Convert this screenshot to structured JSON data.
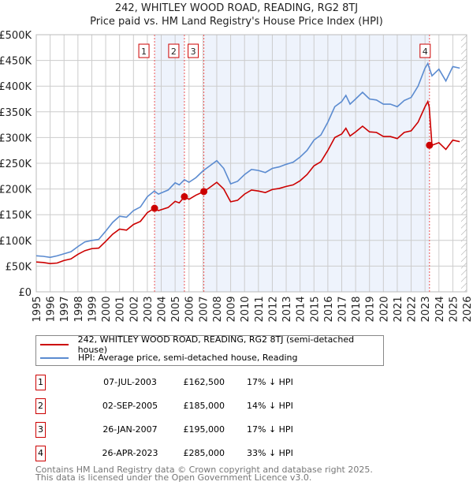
{
  "chart_data": {
    "type": "line",
    "title": "242, WHITLEY WOOD ROAD, READING, RG2 8TJ",
    "subtitle": "Price paid vs. HM Land Registry's House Price Index (HPI)",
    "xlabel": "",
    "ylabel": "",
    "xlim": [
      1995,
      2026
    ],
    "ylim": [
      0,
      500000
    ],
    "yticks": [
      0,
      50000,
      100000,
      150000,
      200000,
      250000,
      300000,
      350000,
      400000,
      450000,
      500000
    ],
    "ytick_labels": [
      "£0",
      "£50K",
      "£100K",
      "£150K",
      "£200K",
      "£250K",
      "£300K",
      "£350K",
      "£400K",
      "£450K",
      "£500K"
    ],
    "xticks": [
      "1995",
      "1996",
      "1997",
      "1998",
      "1999",
      "2000",
      "2001",
      "2002",
      "2003",
      "2004",
      "2005",
      "2006",
      "2007",
      "2008",
      "2009",
      "2010",
      "2011",
      "2012",
      "2013",
      "2014",
      "2015",
      "2016",
      "2017",
      "2018",
      "2019",
      "2020",
      "2021",
      "2022",
      "2023",
      "2024",
      "2025",
      "2026"
    ],
    "grid": true,
    "legend_placement": "below",
    "series": [
      {
        "name": "242, WHITLEY WOOD ROAD, READING, RG2 8TJ (semi-detached house)",
        "color": "#cc0000",
        "x": [
          1995,
          1995.5,
          1996,
          1996.5,
          1997,
          1997.5,
          1998,
          1998.5,
          1999,
          1999.5,
          2000,
          2000.5,
          2001,
          2001.5,
          2002,
          2002.5,
          2003,
          2003.5,
          2003.8,
          2004.5,
          2005,
          2005.3,
          2005.67,
          2006,
          2006.5,
          2007.07,
          2007.5,
          2008,
          2008.5,
          2009,
          2009.5,
          2010,
          2010.5,
          2011,
          2011.5,
          2012,
          2012.5,
          2013,
          2013.5,
          2014,
          2014.5,
          2015,
          2015.5,
          2016,
          2016.5,
          2017,
          2017.3,
          2017.6,
          2018,
          2018.5,
          2019,
          2019.5,
          2020,
          2020.5,
          2021,
          2021.5,
          2022,
          2022.5,
          2023,
          2023.2,
          2023.3,
          2023.5,
          2024,
          2024.5,
          2025,
          2025.5
        ],
        "y": [
          58000,
          57000,
          55000,
          56000,
          61000,
          64000,
          73000,
          80000,
          84000,
          85000,
          98000,
          112000,
          122000,
          120000,
          131000,
          137000,
          154000,
          162500,
          158000,
          164000,
          176000,
          173000,
          185000,
          180000,
          188000,
          195000,
          203000,
          213000,
          200000,
          175000,
          178000,
          190000,
          198000,
          196000,
          193000,
          199000,
          201000,
          205000,
          208000,
          216000,
          228000,
          245000,
          253000,
          275000,
          300000,
          307000,
          318000,
          303000,
          311000,
          322000,
          311000,
          310000,
          302000,
          302000,
          298000,
          310000,
          313000,
          330000,
          360000,
          370000,
          360000,
          285000,
          290000,
          277000,
          295000,
          292000
        ]
      },
      {
        "name": "HPI: Average price, semi-detached house, Reading",
        "color": "#5b8bd0",
        "x": [
          1995,
          1995.5,
          1996,
          1996.5,
          1997,
          1997.5,
          1998,
          1998.5,
          1999,
          1999.5,
          2000,
          2000.5,
          2001,
          2001.5,
          2002,
          2002.5,
          2003,
          2003.5,
          2003.8,
          2004.5,
          2005,
          2005.3,
          2005.67,
          2006,
          2006.5,
          2007,
          2007.5,
          2008,
          2008.5,
          2009,
          2009.5,
          2010,
          2010.5,
          2011,
          2011.5,
          2012,
          2012.5,
          2013,
          2013.5,
          2014,
          2014.5,
          2015,
          2015.5,
          2016,
          2016.5,
          2017,
          2017.3,
          2017.6,
          2018,
          2018.5,
          2019,
          2019.5,
          2020,
          2020.5,
          2021,
          2021.5,
          2022,
          2022.5,
          2023,
          2023.2,
          2023.5,
          2024,
          2024.5,
          2025,
          2025.5
        ],
        "y": [
          70000,
          69000,
          67000,
          70000,
          74000,
          78000,
          88000,
          97000,
          100000,
          102000,
          118000,
          135000,
          147000,
          145000,
          158000,
          165000,
          185000,
          196000,
          190000,
          198000,
          212000,
          208000,
          218000,
          213000,
          222000,
          235000,
          245000,
          255000,
          240000,
          210000,
          215000,
          228000,
          238000,
          236000,
          232000,
          240000,
          243000,
          248000,
          252000,
          262000,
          275000,
          295000,
          305000,
          330000,
          360000,
          370000,
          382000,
          365000,
          375000,
          388000,
          375000,
          373000,
          365000,
          365000,
          360000,
          372000,
          378000,
          400000,
          435000,
          444000,
          420000,
          433000,
          410000,
          438000,
          435000
        ]
      }
    ],
    "sales": [
      {
        "n": "1",
        "x": 2003.52,
        "y": 162500
      },
      {
        "n": "2",
        "x": 2005.67,
        "y": 185000
      },
      {
        "n": "3",
        "x": 2007.07,
        "y": 195000
      },
      {
        "n": "4",
        "x": 2023.32,
        "y": 285000
      }
    ],
    "shaded": [
      [
        2003.52,
        2005.67
      ],
      [
        2007.07,
        2023.32
      ]
    ],
    "forecast_from": 2025.6
  },
  "header": {
    "title": "242, WHITLEY WOOD ROAD, READING, RG2 8TJ",
    "subtitle": "Price paid vs. HM Land Registry's House Price Index (HPI)"
  },
  "legend": {
    "red": "242, WHITLEY WOOD ROAD, READING, RG2 8TJ (semi-detached house)",
    "blue": "HPI: Average price, semi-detached house, Reading",
    "red_color": "#cc0000",
    "blue_color": "#5b8bd0"
  },
  "table": [
    {
      "n": "1",
      "date": "07-JUL-2003",
      "price": "£162,500",
      "hpi": "17% ↓ HPI"
    },
    {
      "n": "2",
      "date": "02-SEP-2005",
      "price": "£185,000",
      "hpi": "14% ↓ HPI"
    },
    {
      "n": "3",
      "date": "26-JAN-2007",
      "price": "£195,000",
      "hpi": "17% ↓ HPI"
    },
    {
      "n": "4",
      "date": "26-APR-2023",
      "price": "£285,000",
      "hpi": "33% ↓ HPI"
    }
  ],
  "footer": {
    "line1": "Contains HM Land Registry data © Crown copyright and database right 2025.",
    "line2": "This data is licensed under the Open Government Licence v3.0."
  }
}
